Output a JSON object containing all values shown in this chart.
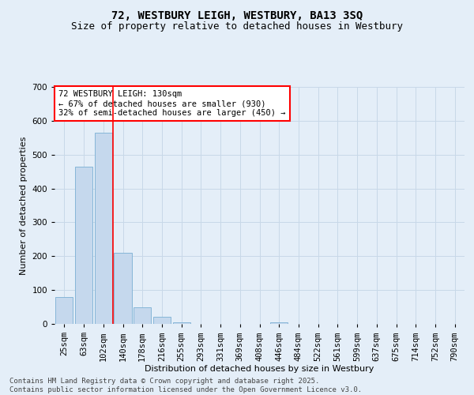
{
  "title_line1": "72, WESTBURY LEIGH, WESTBURY, BA13 3SQ",
  "title_line2": "Size of property relative to detached houses in Westbury",
  "xlabel": "Distribution of detached houses by size in Westbury",
  "ylabel": "Number of detached properties",
  "categories": [
    "25sqm",
    "63sqm",
    "102sqm",
    "140sqm",
    "178sqm",
    "216sqm",
    "255sqm",
    "293sqm",
    "331sqm",
    "369sqm",
    "408sqm",
    "446sqm",
    "484sqm",
    "522sqm",
    "561sqm",
    "599sqm",
    "637sqm",
    "675sqm",
    "714sqm",
    "752sqm",
    "790sqm"
  ],
  "values": [
    80,
    465,
    565,
    210,
    50,
    20,
    5,
    0,
    0,
    0,
    0,
    5,
    0,
    0,
    0,
    0,
    0,
    0,
    0,
    0,
    0
  ],
  "bar_color": "#c5d8ed",
  "bar_edge_color": "#7aafd4",
  "grid_color": "#c8d8e8",
  "bg_color": "#e4eef8",
  "annotation_box_text": "72 WESTBURY LEIGH: 130sqm\n← 67% of detached houses are smaller (930)\n32% of semi-detached houses are larger (450) →",
  "red_line_x": 2.5,
  "ylim": [
    0,
    700
  ],
  "yticks": [
    0,
    100,
    200,
    300,
    400,
    500,
    600,
    700
  ],
  "footer_line1": "Contains HM Land Registry data © Crown copyright and database right 2025.",
  "footer_line2": "Contains public sector information licensed under the Open Government Licence v3.0.",
  "title1_fontsize": 10,
  "title2_fontsize": 9,
  "axis_label_fontsize": 8,
  "tick_fontsize": 7.5,
  "annotation_fontsize": 7.5,
  "footer_fontsize": 6.5
}
